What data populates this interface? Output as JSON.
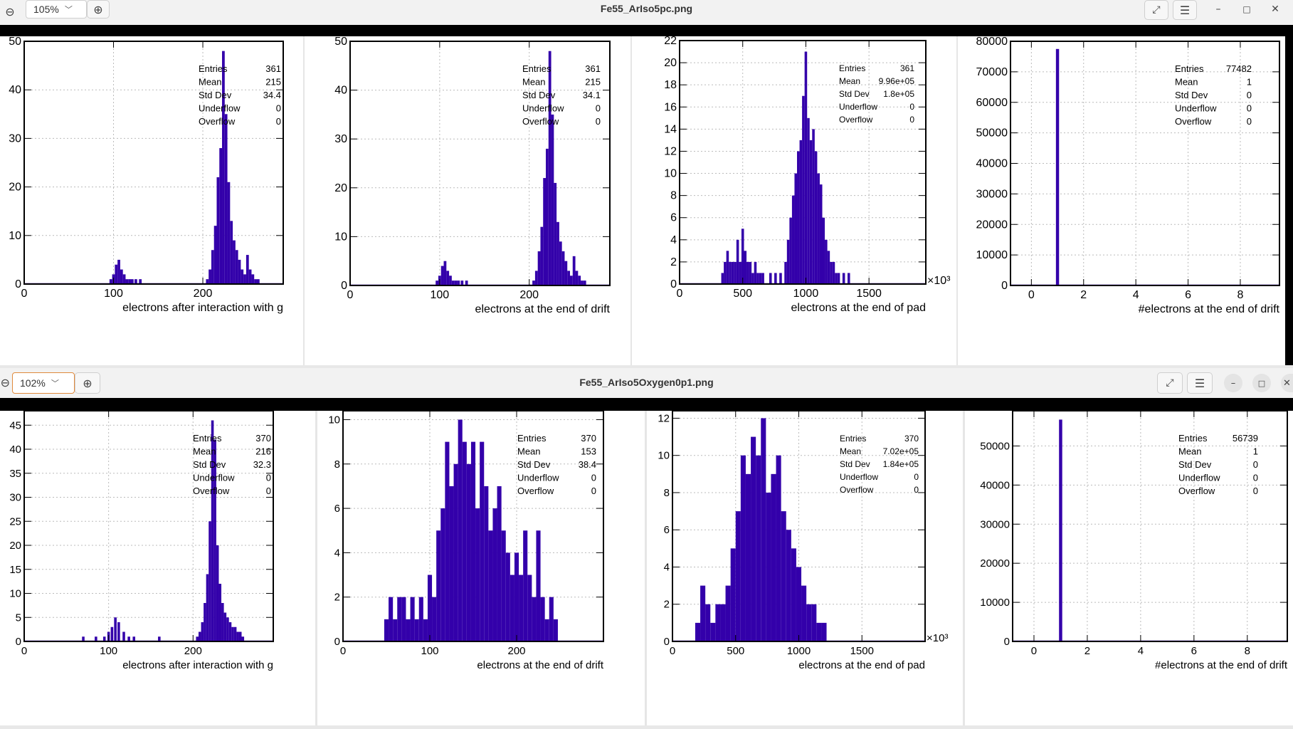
{
  "colors": {
    "bar": "#3300aa",
    "frame": "#000000",
    "grid": "#bbbbbb"
  },
  "windows": [
    {
      "title": "Fe55_ArIso5pc.png",
      "zoom": "105%",
      "icons": [
        "zoom-out-icon",
        "zoom-in-icon",
        "fullscreen-icon",
        "menu-icon",
        "minimize-icon",
        "maximize-icon",
        "close-icon"
      ],
      "pads": [
        {
          "xlabel": "electrons after interaction with g",
          "xlim": [
            0,
            290
          ],
          "ylim": [
            0,
            50
          ],
          "xticks": [
            "0",
            "100",
            "200"
          ],
          "xtick_vals": [
            0,
            100,
            200
          ],
          "yticks": [
            "0",
            "10",
            "20",
            "30",
            "40",
            "50"
          ],
          "ytick_vals": [
            0,
            10,
            20,
            30,
            40,
            50
          ],
          "xmult": "",
          "stats": [
            [
              "Entries",
              "361"
            ],
            [
              "Mean",
              "215"
            ],
            [
              "Std Dev",
              "34.4"
            ],
            [
              "Underflow",
              "0"
            ],
            [
              "Overflow",
              "0"
            ]
          ]
        },
        {
          "xlabel": "electrons at the end of drift",
          "xlim": [
            0,
            290
          ],
          "ylim": [
            0,
            50
          ],
          "xticks": [
            "0",
            "100",
            "200"
          ],
          "xtick_vals": [
            0,
            100,
            200
          ],
          "yticks": [
            "0",
            "10",
            "20",
            "30",
            "40",
            "50"
          ],
          "ytick_vals": [
            0,
            10,
            20,
            30,
            40,
            50
          ],
          "xmult": "",
          "stats": [
            [
              "Entries",
              "361"
            ],
            [
              "Mean",
              "215"
            ],
            [
              "Std Dev",
              "34.1"
            ],
            [
              "Underflow",
              "0"
            ],
            [
              "Overflow",
              "0"
            ]
          ]
        },
        {
          "xlabel": "electrons at the end of pad",
          "xlim": [
            0,
            1950
          ],
          "ylim": [
            0,
            22
          ],
          "xticks": [
            "0",
            "500",
            "1000",
            "1500"
          ],
          "xtick_vals": [
            0,
            500,
            1000,
            1500
          ],
          "yticks": [
            "0",
            "2",
            "4",
            "6",
            "8",
            "10",
            "12",
            "14",
            "16",
            "18",
            "20",
            "22"
          ],
          "ytick_vals": [
            0,
            2,
            4,
            6,
            8,
            10,
            12,
            14,
            16,
            18,
            20,
            22
          ],
          "xmult": "×10³",
          "stats": [
            [
              "Entries",
              "361"
            ],
            [
              "Mean",
              "9.96e+05"
            ],
            [
              "Std Dev",
              "1.8e+05"
            ],
            [
              "Underflow",
              "0"
            ],
            [
              "Overflow",
              "0"
            ]
          ]
        },
        {
          "xlabel": "#electrons at the end of drift",
          "xlim": [
            -0.8,
            9.5
          ],
          "ylim": [
            0,
            80000
          ],
          "xticks": [
            "0",
            "2",
            "4",
            "6",
            "8"
          ],
          "xtick_vals": [
            0,
            2,
            4,
            6,
            8
          ],
          "yticks": [
            "0",
            "10000",
            "20000",
            "30000",
            "40000",
            "50000",
            "60000",
            "70000",
            "80000"
          ],
          "ytick_vals": [
            0,
            10000,
            20000,
            30000,
            40000,
            50000,
            60000,
            70000,
            80000
          ],
          "xmult": "",
          "stats": [
            [
              "Entries",
              "77482"
            ],
            [
              "Mean",
              "1"
            ],
            [
              "Std Dev",
              "0"
            ],
            [
              "Underflow",
              "0"
            ],
            [
              "Overflow",
              "0"
            ]
          ]
        }
      ]
    },
    {
      "title": "Fe55_ArIso5Oxygen0p1.png",
      "zoom": "102%",
      "icons": [
        "zoom-out-icon",
        "zoom-in-icon",
        "fullscreen-icon",
        "menu-icon",
        "minimize-icon",
        "maximize-icon",
        "close-icon"
      ],
      "pads": [
        {
          "xlabel": "electrons after interaction with g",
          "xlim": [
            0,
            295
          ],
          "ylim": [
            0,
            48
          ],
          "xticks": [
            "0",
            "100",
            "200"
          ],
          "xtick_vals": [
            0,
            100,
            200
          ],
          "yticks": [
            "0",
            "5",
            "10",
            "15",
            "20",
            "25",
            "30",
            "35",
            "40",
            "45"
          ],
          "ytick_vals": [
            0,
            5,
            10,
            15,
            20,
            25,
            30,
            35,
            40,
            45
          ],
          "xmult": "",
          "stats": [
            [
              "Entries",
              "370"
            ],
            [
              "Mean",
              "216"
            ],
            [
              "Std Dev",
              "32.3"
            ],
            [
              "Underflow",
              "0"
            ],
            [
              "Overflow",
              "0"
            ]
          ]
        },
        {
          "xlabel": "electrons at the end of drift",
          "xlim": [
            0,
            300
          ],
          "ylim": [
            0,
            10.4
          ],
          "xticks": [
            "0",
            "100",
            "200"
          ],
          "xtick_vals": [
            0,
            100,
            200
          ],
          "yticks": [
            "0",
            "2",
            "4",
            "6",
            "8",
            "10"
          ],
          "ytick_vals": [
            0,
            2,
            4,
            6,
            8,
            10
          ],
          "xmult": "",
          "stats": [
            [
              "Entries",
              "370"
            ],
            [
              "Mean",
              "153"
            ],
            [
              "Std Dev",
              "38.4"
            ],
            [
              "Underflow",
              "0"
            ],
            [
              "Overflow",
              "0"
            ]
          ]
        },
        {
          "xlabel": "electrons at the end of pad",
          "xlim": [
            0,
            2000
          ],
          "ylim": [
            0,
            12.4
          ],
          "xticks": [
            "0",
            "500",
            "1000",
            "1500"
          ],
          "xtick_vals": [
            0,
            500,
            1000,
            1500
          ],
          "yticks": [
            "0",
            "2",
            "4",
            "6",
            "8",
            "10",
            "12"
          ],
          "ytick_vals": [
            0,
            2,
            4,
            6,
            8,
            10,
            12
          ],
          "xmult": "×10³",
          "stats": [
            [
              "Entries",
              "370"
            ],
            [
              "Mean",
              "7.02e+05"
            ],
            [
              "Std Dev",
              "1.84e+05"
            ],
            [
              "Underflow",
              "0"
            ],
            [
              "Overflow",
              "0"
            ]
          ]
        },
        {
          "xlabel": "#electrons at the end of drift",
          "xlim": [
            -0.8,
            9.5
          ],
          "ylim": [
            0,
            59000
          ],
          "xticks": [
            "0",
            "2",
            "4",
            "6",
            "8"
          ],
          "xtick_vals": [
            0,
            2,
            4,
            6,
            8
          ],
          "yticks": [
            "0",
            "10000",
            "20000",
            "30000",
            "40000",
            "50000"
          ],
          "ytick_vals": [
            0,
            10000,
            20000,
            30000,
            40000,
            50000
          ],
          "xmult": "",
          "stats": [
            [
              "Entries",
              "56739"
            ],
            [
              "Mean",
              "1"
            ],
            [
              "Std Dev",
              "0"
            ],
            [
              "Underflow",
              "0"
            ],
            [
              "Overflow",
              "0"
            ]
          ]
        }
      ]
    }
  ],
  "chart_data": [
    {
      "type": "bar",
      "title": "",
      "xlabel": "electrons after interaction with g",
      "ylabel": "",
      "xlim": [
        0,
        290
      ],
      "ylim": [
        0,
        50
      ],
      "x": [
        97,
        100,
        103,
        106,
        109,
        112,
        115,
        118,
        121,
        125,
        130,
        205,
        208,
        211,
        214,
        217,
        220,
        223,
        226,
        229,
        232,
        235,
        238,
        241,
        244,
        247,
        250,
        253,
        256,
        259,
        262
      ],
      "values": [
        1,
        2,
        4,
        5,
        3,
        2,
        1,
        1,
        1,
        1,
        1,
        1,
        3,
        7,
        12,
        22,
        28,
        48,
        35,
        21,
        13,
        9,
        7,
        5,
        3,
        2,
        6,
        3,
        2,
        1,
        1
      ]
    },
    {
      "type": "bar",
      "title": "",
      "xlabel": "electrons at the end of drift",
      "ylabel": "",
      "xlim": [
        0,
        290
      ],
      "ylim": [
        0,
        50
      ],
      "x": [
        97,
        100,
        103,
        106,
        109,
        112,
        115,
        118,
        121,
        125,
        130,
        205,
        208,
        211,
        214,
        217,
        220,
        223,
        226,
        229,
        232,
        235,
        238,
        241,
        244,
        247,
        250,
        253,
        256,
        259,
        262
      ],
      "values": [
        1,
        2,
        4,
        5,
        3,
        2,
        1,
        1,
        1,
        1,
        1,
        1,
        3,
        7,
        12,
        22,
        28,
        48,
        35,
        21,
        13,
        9,
        7,
        5,
        3,
        2,
        6,
        3,
        2,
        1,
        1
      ]
    },
    {
      "type": "bar",
      "title": "",
      "xlabel": "electrons at the end of pad",
      "ylabel": "",
      "xlim": [
        0,
        1950
      ],
      "ylim": [
        0,
        22
      ],
      "x": [
        340,
        360,
        380,
        400,
        420,
        440,
        460,
        480,
        500,
        520,
        540,
        560,
        580,
        600,
        620,
        640,
        660,
        720,
        760,
        800,
        840,
        860,
        880,
        900,
        920,
        940,
        960,
        980,
        1000,
        1020,
        1040,
        1060,
        1080,
        1100,
        1120,
        1140,
        1160,
        1180,
        1200,
        1220,
        1240,
        1260,
        1300,
        1340
      ],
      "values": [
        1,
        2,
        3,
        2,
        2,
        2,
        4,
        2,
        5,
        3,
        2,
        2,
        1,
        2,
        1,
        1,
        1,
        1,
        1,
        1,
        2,
        4,
        6,
        8,
        10,
        12,
        13,
        17,
        21,
        15,
        13,
        14,
        12,
        10,
        9,
        6,
        4,
        3,
        2,
        2,
        1,
        1,
        1,
        1
      ]
    },
    {
      "type": "bar",
      "title": "",
      "xlabel": "#electrons at the end of drift",
      "ylabel": "",
      "xlim": [
        -0.8,
        9.5
      ],
      "ylim": [
        0,
        80000
      ],
      "x": [
        1
      ],
      "values": [
        77482
      ]
    },
    {
      "type": "bar",
      "title": "",
      "xlabel": "electrons after interaction with g",
      "ylabel": "",
      "xlim": [
        0,
        295
      ],
      "ylim": [
        0,
        48
      ],
      "x": [
        70,
        85,
        95,
        100,
        104,
        108,
        112,
        118,
        124,
        130,
        160,
        205,
        208,
        211,
        214,
        217,
        220,
        223,
        226,
        229,
        232,
        235,
        238,
        241,
        244,
        247,
        250,
        253,
        256,
        259
      ],
      "values": [
        1,
        1,
        1,
        2,
        3,
        5,
        4,
        2,
        1,
        1,
        1,
        1,
        2,
        4,
        8,
        14,
        25,
        46,
        42,
        20,
        12,
        8,
        6,
        5,
        4,
        3,
        3,
        2,
        2,
        1
      ]
    },
    {
      "type": "bar",
      "title": "",
      "xlabel": "electrons at the end of drift",
      "ylabel": "",
      "xlim": [
        0,
        300
      ],
      "ylim": [
        0,
        10.4
      ],
      "x": [
        50,
        55,
        60,
        65,
        70,
        75,
        80,
        85,
        90,
        95,
        100,
        105,
        110,
        115,
        120,
        125,
        130,
        135,
        140,
        145,
        150,
        155,
        160,
        165,
        170,
        175,
        180,
        185,
        190,
        195,
        200,
        205,
        210,
        215,
        220,
        225,
        230,
        235,
        240,
        245
      ],
      "values": [
        1,
        2,
        1,
        2,
        2,
        1,
        2,
        1,
        2,
        1,
        3,
        2,
        5,
        6,
        9,
        7,
        8,
        10,
        9,
        8,
        9,
        6,
        9,
        7,
        5,
        6,
        7,
        5,
        4,
        3,
        4,
        3,
        5,
        3,
        2,
        5,
        2,
        1,
        2,
        1
      ]
    },
    {
      "type": "bar",
      "title": "",
      "xlabel": "electrons at the end of pad",
      "ylabel": "",
      "xlim": [
        0,
        2000
      ],
      "ylim": [
        0,
        12.4
      ],
      "x": [
        200,
        240,
        280,
        320,
        360,
        400,
        440,
        480,
        520,
        560,
        600,
        640,
        680,
        720,
        760,
        800,
        840,
        880,
        920,
        960,
        1000,
        1040,
        1080,
        1120,
        1160,
        1200
      ],
      "values": [
        1,
        3,
        2,
        1,
        2,
        2,
        3,
        5,
        7,
        10,
        9,
        11,
        10,
        12,
        8,
        9,
        10,
        7,
        6,
        5,
        4,
        3,
        2,
        2,
        1,
        1
      ]
    },
    {
      "type": "bar",
      "title": "",
      "xlabel": "#electrons at the end of drift",
      "ylabel": "",
      "xlim": [
        -0.8,
        9.5
      ],
      "ylim": [
        0,
        59000
      ],
      "x": [
        1
      ],
      "values": [
        56739
      ]
    }
  ]
}
